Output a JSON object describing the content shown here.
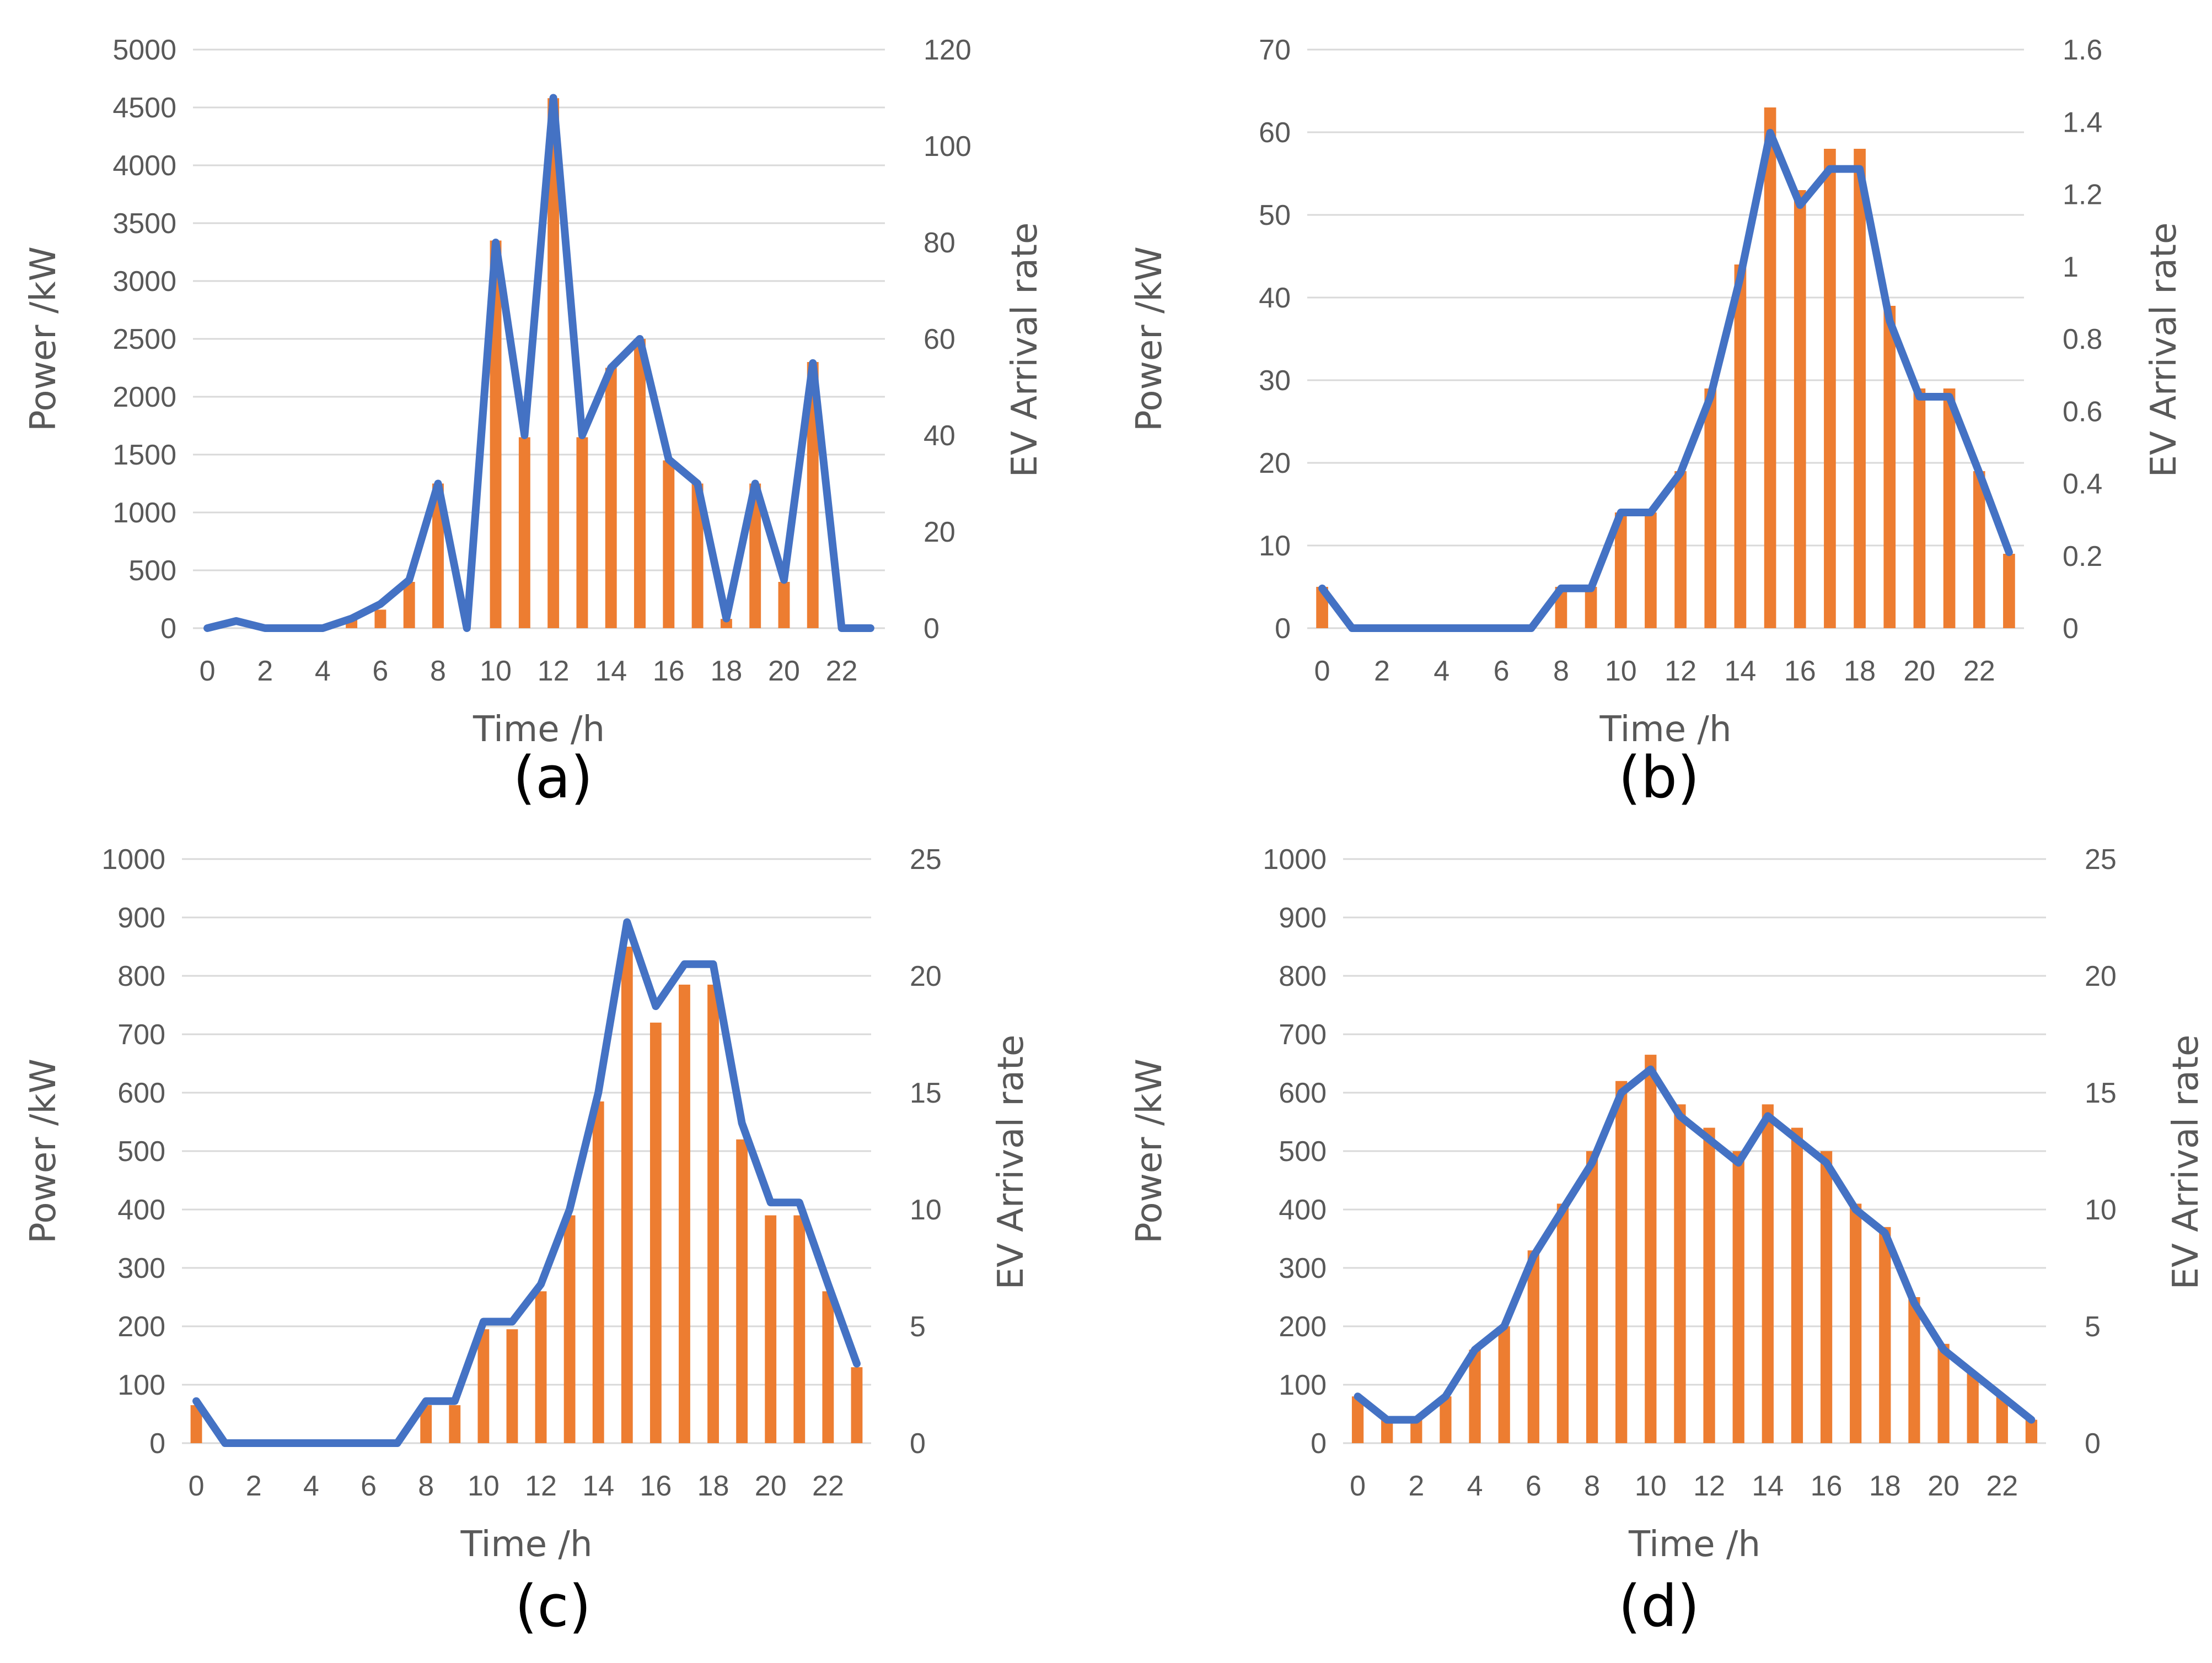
{
  "chart_data": [
    {
      "type": "bar+line",
      "caption": "(a)",
      "xlabel": "Time /h",
      "ylabel_left": "Power /kW",
      "ylabel_right": "EV Arrival rate",
      "x": [
        0,
        1,
        2,
        3,
        4,
        5,
        6,
        7,
        8,
        9,
        10,
        11,
        12,
        13,
        14,
        15,
        16,
        17,
        18,
        19,
        20,
        21,
        22,
        23
      ],
      "x_tick_labels": [
        "0",
        "2",
        "4",
        "6",
        "8",
        "10",
        "12",
        "14",
        "16",
        "18",
        "20",
        "22"
      ],
      "left_ticks": [
        "0",
        "500",
        "1000",
        "1500",
        "2000",
        "2500",
        "3000",
        "3500",
        "4000",
        "4500",
        "5000"
      ],
      "right_ticks": [
        "0",
        "20",
        "40",
        "60",
        "80",
        "100",
        "120"
      ],
      "ylim_left": [
        0,
        5000
      ],
      "ylim_right": [
        0,
        120
      ],
      "series": [
        {
          "name": "Power",
          "axis": "left",
          "kind": "bar",
          "color": "#ED7D31",
          "values": [
            0,
            0,
            0,
            0,
            0,
            80,
            160,
            400,
            1250,
            0,
            3350,
            1650,
            4580,
            1650,
            2250,
            2500,
            1450,
            1250,
            80,
            1250,
            400,
            2300,
            0,
            0
          ]
        },
        {
          "name": "EV Arrival rate",
          "axis": "right",
          "kind": "line",
          "color": "#4472C4",
          "values": [
            0,
            1.5,
            0,
            0,
            0,
            2,
            5,
            10,
            30,
            0,
            80,
            40,
            110,
            40,
            54,
            60,
            35,
            30,
            2,
            30,
            10,
            55,
            0,
            0
          ]
        }
      ]
    },
    {
      "type": "bar+line",
      "caption": "(b)",
      "xlabel": "Time /h",
      "ylabel_left": "Power /kW",
      "ylabel_right": "EV Arrival rate",
      "x": [
        0,
        1,
        2,
        3,
        4,
        5,
        6,
        7,
        8,
        9,
        10,
        11,
        12,
        13,
        14,
        15,
        16,
        17,
        18,
        19,
        20,
        21,
        22,
        23
      ],
      "x_tick_labels": [
        "0",
        "2",
        "4",
        "6",
        "8",
        "10",
        "12",
        "14",
        "16",
        "18",
        "20",
        "22"
      ],
      "left_ticks": [
        "0",
        "10",
        "20",
        "30",
        "40",
        "50",
        "60",
        "70"
      ],
      "right_ticks": [
        "0",
        "0.2",
        "0.4",
        "0.6",
        "0.8",
        "1",
        "1.2",
        "1.4",
        "1.6"
      ],
      "ylim_left": [
        0,
        70
      ],
      "ylim_right": [
        0,
        1.6
      ],
      "series": [
        {
          "name": "Power",
          "axis": "left",
          "kind": "bar",
          "color": "#ED7D31",
          "values": [
            5,
            0,
            0,
            0,
            0,
            0,
            0,
            0,
            5,
            5,
            14,
            14,
            19,
            29,
            44,
            63,
            53,
            58,
            58,
            39,
            29,
            29,
            19,
            9
          ]
        },
        {
          "name": "EV Arrival rate",
          "axis": "right",
          "kind": "line",
          "color": "#4472C4",
          "values": [
            0.11,
            0,
            0,
            0,
            0,
            0,
            0,
            0,
            0.11,
            0.11,
            0.32,
            0.32,
            0.43,
            0.64,
            0.97,
            1.37,
            1.17,
            1.27,
            1.27,
            0.85,
            0.64,
            0.64,
            0.43,
            0.21
          ]
        }
      ]
    },
    {
      "type": "bar+line",
      "caption": "(c)",
      "xlabel": "Time /h",
      "ylabel_left": "Power /kW",
      "ylabel_right": "EV Arrival rate",
      "x": [
        0,
        1,
        2,
        3,
        4,
        5,
        6,
        7,
        8,
        9,
        10,
        11,
        12,
        13,
        14,
        15,
        16,
        17,
        18,
        19,
        20,
        21,
        22,
        23
      ],
      "x_tick_labels": [
        "0",
        "2",
        "4",
        "6",
        "8",
        "10",
        "12",
        "14",
        "16",
        "18",
        "20",
        "22"
      ],
      "left_ticks": [
        "0",
        "100",
        "200",
        "300",
        "400",
        "500",
        "600",
        "700",
        "800",
        "900",
        "1000"
      ],
      "right_ticks": [
        "0",
        "5",
        "10",
        "15",
        "20",
        "25"
      ],
      "ylim_left": [
        0,
        1000
      ],
      "ylim_right": [
        0,
        25
      ],
      "series": [
        {
          "name": "Power",
          "axis": "left",
          "kind": "bar",
          "color": "#ED7D31",
          "values": [
            65,
            0,
            0,
            0,
            0,
            0,
            0,
            0,
            65,
            65,
            195,
            195,
            260,
            390,
            585,
            850,
            720,
            785,
            785,
            520,
            390,
            390,
            260,
            130
          ]
        },
        {
          "name": "EV Arrival rate",
          "axis": "right",
          "kind": "line",
          "color": "#4472C4",
          "values": [
            1.8,
            0,
            0,
            0,
            0,
            0,
            0,
            0,
            1.8,
            1.8,
            5.2,
            5.2,
            6.8,
            10,
            15,
            22.3,
            18.7,
            20.5,
            20.5,
            13.7,
            10.3,
            10.3,
            6.8,
            3.4
          ]
        }
      ]
    },
    {
      "type": "bar+line",
      "caption": "(d)",
      "xlabel": "Time /h",
      "ylabel_left": "Power /kW",
      "ylabel_right": "EV Arrival rate",
      "x": [
        0,
        1,
        2,
        3,
        4,
        5,
        6,
        7,
        8,
        9,
        10,
        11,
        12,
        13,
        14,
        15,
        16,
        17,
        18,
        19,
        20,
        21,
        22,
        23
      ],
      "x_tick_labels": [
        "0",
        "2",
        "4",
        "6",
        "8",
        "10",
        "12",
        "14",
        "16",
        "18",
        "20",
        "22"
      ],
      "left_ticks": [
        "0",
        "100",
        "200",
        "300",
        "400",
        "500",
        "600",
        "700",
        "800",
        "900",
        "1000"
      ],
      "right_ticks": [
        "0",
        "5",
        "10",
        "15",
        "20",
        "25"
      ],
      "ylim_left": [
        0,
        1000
      ],
      "ylim_right": [
        0,
        25
      ],
      "series": [
        {
          "name": "Power",
          "axis": "left",
          "kind": "bar",
          "color": "#ED7D31",
          "values": [
            80,
            40,
            40,
            80,
            160,
            200,
            330,
            410,
            500,
            620,
            665,
            580,
            540,
            500,
            580,
            540,
            500,
            410,
            370,
            250,
            170,
            120,
            80,
            40
          ]
        },
        {
          "name": "EV Arrival rate",
          "axis": "right",
          "kind": "line",
          "color": "#4472C4",
          "values": [
            2,
            1,
            1,
            2,
            4,
            5,
            8,
            10,
            12,
            15,
            16,
            14,
            13,
            12,
            14,
            13,
            12,
            10,
            9,
            6,
            4,
            3,
            2,
            1
          ]
        }
      ]
    }
  ]
}
